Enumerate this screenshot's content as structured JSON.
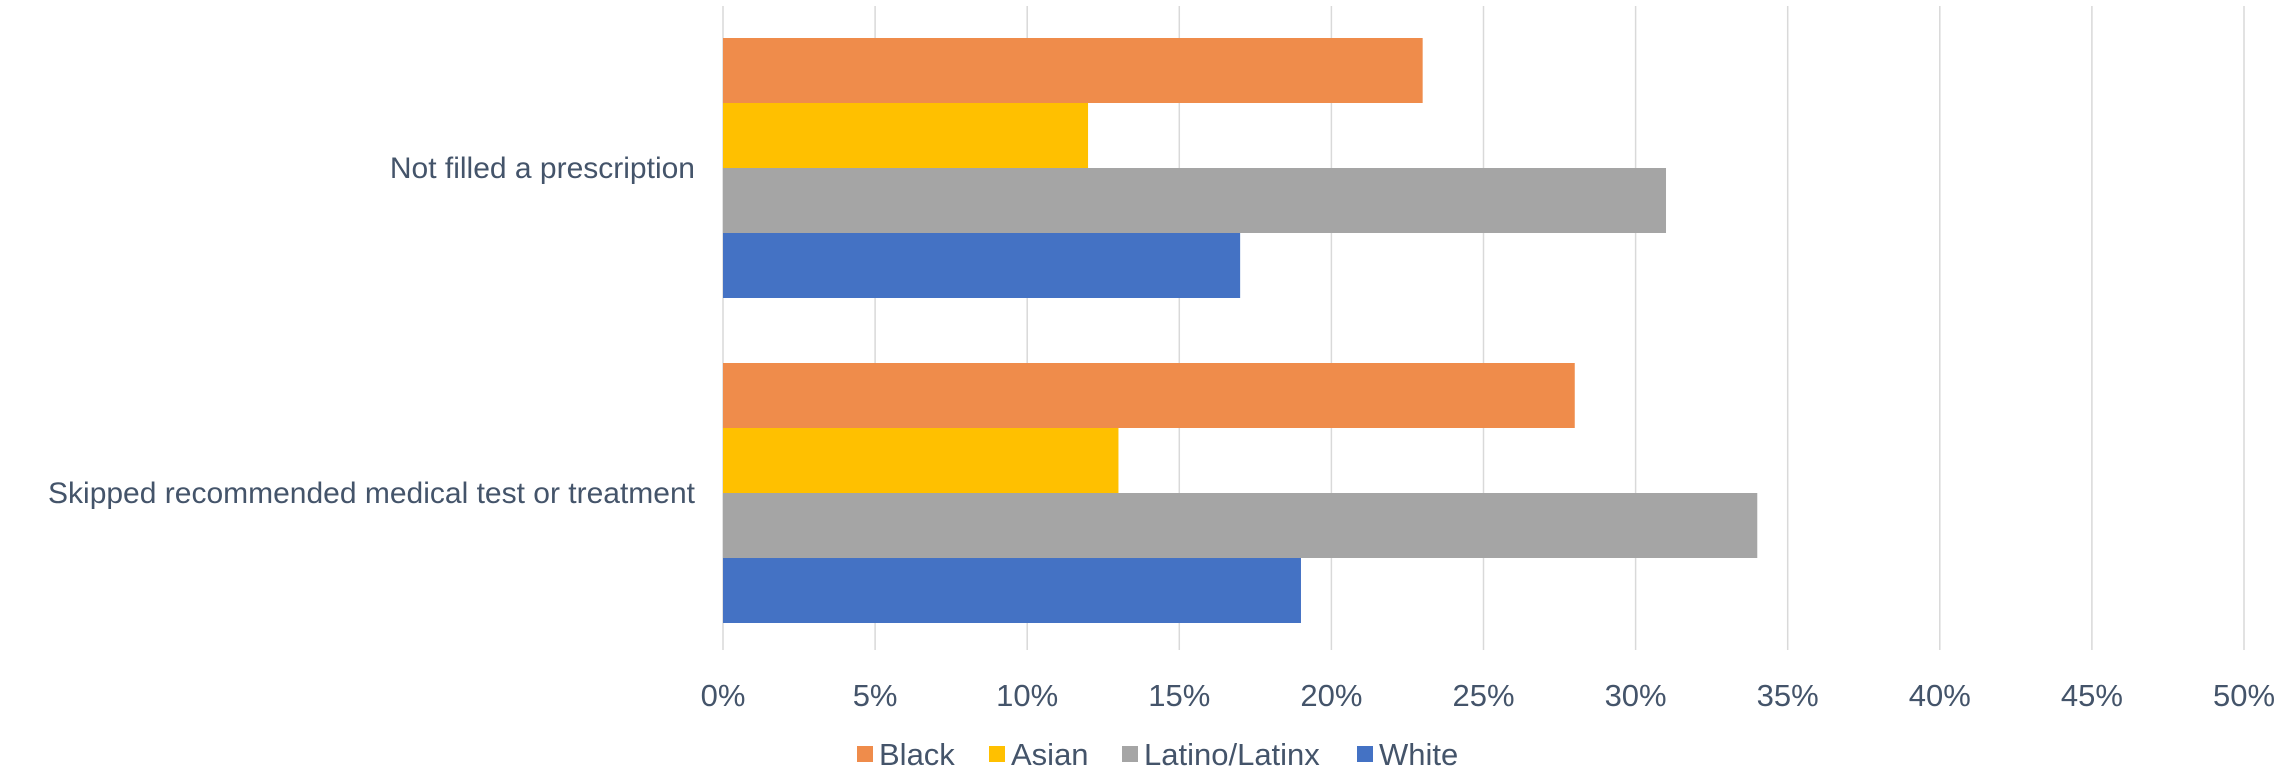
{
  "chart_data": {
    "type": "bar",
    "orientation": "horizontal",
    "categories": [
      "Not filled a prescription",
      "Skipped recommended medical test or treatment"
    ],
    "series": [
      {
        "name": "Black",
        "color": "#ef8c4b",
        "values": [
          23,
          28
        ]
      },
      {
        "name": "Asian",
        "color": "#ffc000",
        "values": [
          12,
          13
        ]
      },
      {
        "name": "Latino/Latinx",
        "color": "#a5a5a5",
        "values": [
          31,
          34
        ]
      },
      {
        "name": "White",
        "color": "#4472c4",
        "values": [
          17,
          19
        ]
      }
    ],
    "x_ticks": [
      "0%",
      "5%",
      "10%",
      "15%",
      "20%",
      "25%",
      "30%",
      "35%",
      "40%",
      "45%",
      "50%"
    ],
    "xlim": [
      0,
      50
    ],
    "x_unit": "%",
    "title": "",
    "xlabel": "",
    "ylabel": "",
    "grid": true,
    "legend": "bottom"
  }
}
